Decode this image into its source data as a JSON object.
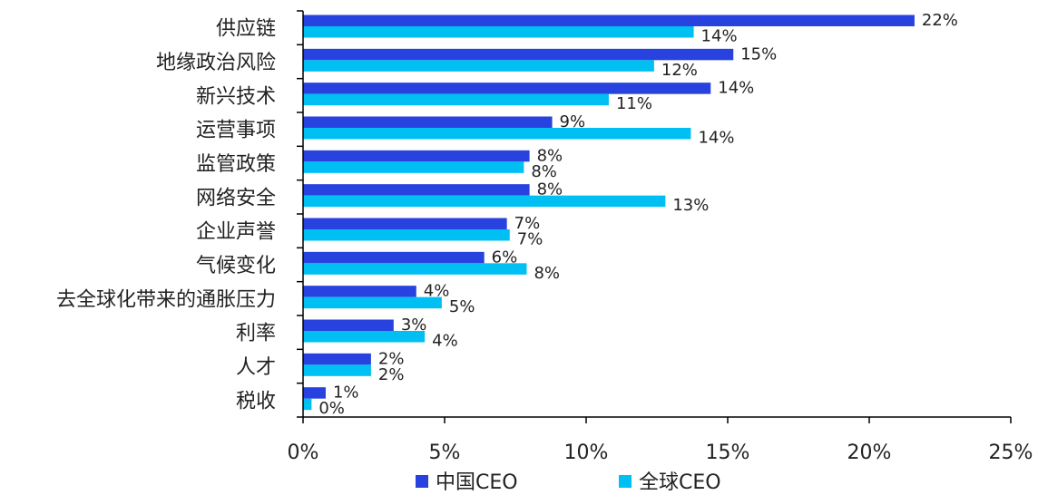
{
  "chart_data": {
    "type": "bar",
    "orientation": "horizontal",
    "categories": [
      "供应链",
      "地缘政治风险",
      "新兴技术",
      "运营事项",
      "监管政策",
      "网络安全",
      "企业声誉",
      "气候变化",
      "去全球化带来的通胀压力",
      "利率",
      "人才",
      "税收"
    ],
    "series": [
      {
        "name": "中国CEO",
        "color": "#2742DE",
        "values": [
          21.6,
          15.2,
          14.4,
          8.8,
          8.0,
          8.0,
          7.2,
          6.4,
          4.0,
          3.2,
          2.4,
          0.8
        ],
        "labels": [
          "22%",
          "15%",
          "14%",
          "9%",
          "8%",
          "8%",
          "7%",
          "6%",
          "4%",
          "3%",
          "2%",
          "1%"
        ]
      },
      {
        "name": "全球CEO",
        "color": "#00BFF3",
        "values": [
          13.8,
          12.4,
          10.8,
          13.7,
          7.8,
          12.8,
          7.3,
          7.9,
          4.9,
          4.3,
          2.4,
          0.3
        ],
        "labels": [
          "14%",
          "12%",
          "11%",
          "14%",
          "8%",
          "13%",
          "7%",
          "8%",
          "5%",
          "4%",
          "2%",
          "0%"
        ]
      }
    ],
    "xlim": [
      0,
      25
    ],
    "xticks": [
      "0%",
      "5%",
      "10%",
      "15%",
      "20%",
      "25%"
    ],
    "legend_position": "bottom",
    "grid": false
  }
}
